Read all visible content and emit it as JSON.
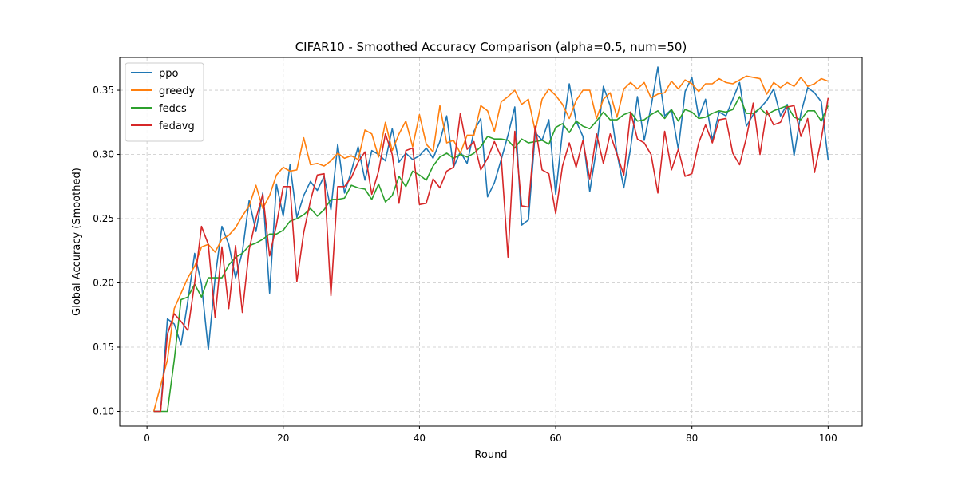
{
  "chart_data": {
    "type": "line",
    "title": "CIFAR10 - Smoothed Accuracy Comparison (alpha=0.5, num=50)",
    "xlabel": "Round",
    "ylabel": "Global Accuracy (Smoothed)",
    "xlim": [
      -4,
      105
    ],
    "ylim": [
      0.0885,
      0.3755
    ],
    "xticks": [
      0,
      20,
      40,
      60,
      80,
      100
    ],
    "yticks": [
      0.1,
      0.15,
      0.2,
      0.25,
      0.3,
      0.35
    ],
    "grid": true,
    "legend_position": "upper-left",
    "colors": {
      "ppo": "#1f77b4",
      "greedy": "#ff7f0e",
      "fedcs": "#2ca02c",
      "fedavg": "#d62728"
    },
    "x": [
      1,
      2,
      3,
      4,
      5,
      6,
      7,
      8,
      9,
      10,
      11,
      12,
      13,
      14,
      15,
      16,
      17,
      18,
      19,
      20,
      21,
      22,
      23,
      24,
      25,
      26,
      27,
      28,
      29,
      30,
      31,
      32,
      33,
      34,
      35,
      36,
      37,
      38,
      39,
      40,
      41,
      42,
      43,
      44,
      45,
      46,
      47,
      48,
      49,
      50,
      51,
      52,
      53,
      54,
      55,
      56,
      57,
      58,
      59,
      60,
      61,
      62,
      63,
      64,
      65,
      66,
      67,
      68,
      69,
      70,
      71,
      72,
      73,
      74,
      75,
      76,
      77,
      78,
      79,
      80,
      81,
      82,
      83,
      84,
      85,
      86,
      87,
      88,
      89,
      90,
      91,
      92,
      93,
      94,
      95,
      96,
      97,
      98,
      99,
      100
    ],
    "series": [
      {
        "name": "ppo",
        "values": [
          0.1,
          0.1,
          0.172,
          0.168,
          0.152,
          0.186,
          0.223,
          0.199,
          0.148,
          0.204,
          0.244,
          0.23,
          0.204,
          0.224,
          0.264,
          0.24,
          0.27,
          0.192,
          0.277,
          0.252,
          0.292,
          0.251,
          0.268,
          0.279,
          0.272,
          0.283,
          0.257,
          0.308,
          0.27,
          0.287,
          0.306,
          0.28,
          0.303,
          0.3,
          0.295,
          0.32,
          0.294,
          0.301,
          0.296,
          0.299,
          0.305,
          0.297,
          0.31,
          0.33,
          0.29,
          0.302,
          0.293,
          0.318,
          0.328,
          0.267,
          0.278,
          0.296,
          0.315,
          0.337,
          0.245,
          0.249,
          0.317,
          0.311,
          0.327,
          0.269,
          0.318,
          0.355,
          0.326,
          0.314,
          0.271,
          0.305,
          0.353,
          0.338,
          0.301,
          0.274,
          0.305,
          0.345,
          0.311,
          0.337,
          0.368,
          0.33,
          0.335,
          0.304,
          0.349,
          0.36,
          0.329,
          0.343,
          0.311,
          0.333,
          0.33,
          0.343,
          0.356,
          0.322,
          0.331,
          0.336,
          0.342,
          0.351,
          0.33,
          0.339,
          0.299,
          0.332,
          0.352,
          0.348,
          0.341,
          0.296
        ]
      },
      {
        "name": "greedy",
        "values": [
          0.1,
          0.12,
          0.14,
          0.18,
          0.192,
          0.204,
          0.213,
          0.228,
          0.23,
          0.224,
          0.234,
          0.237,
          0.243,
          0.252,
          0.26,
          0.276,
          0.258,
          0.268,
          0.284,
          0.29,
          0.287,
          0.288,
          0.313,
          0.292,
          0.293,
          0.291,
          0.295,
          0.301,
          0.297,
          0.299,
          0.296,
          0.319,
          0.316,
          0.298,
          0.325,
          0.303,
          0.316,
          0.326,
          0.306,
          0.331,
          0.308,
          0.302,
          0.338,
          0.309,
          0.311,
          0.301,
          0.315,
          0.315,
          0.338,
          0.334,
          0.318,
          0.341,
          0.345,
          0.35,
          0.339,
          0.343,
          0.318,
          0.343,
          0.351,
          0.346,
          0.339,
          0.328,
          0.342,
          0.35,
          0.35,
          0.328,
          0.343,
          0.348,
          0.329,
          0.351,
          0.356,
          0.351,
          0.356,
          0.344,
          0.347,
          0.348,
          0.357,
          0.351,
          0.358,
          0.355,
          0.349,
          0.355,
          0.355,
          0.359,
          0.356,
          0.355,
          0.358,
          0.361,
          0.36,
          0.359,
          0.347,
          0.356,
          0.352,
          0.356,
          0.353,
          0.36,
          0.353,
          0.355,
          0.359,
          0.357
        ]
      },
      {
        "name": "fedcs",
        "values": [
          0.1,
          0.1,
          0.1,
          0.14,
          0.187,
          0.189,
          0.199,
          0.189,
          0.204,
          0.204,
          0.204,
          0.214,
          0.22,
          0.223,
          0.229,
          0.231,
          0.234,
          0.238,
          0.238,
          0.241,
          0.248,
          0.25,
          0.253,
          0.258,
          0.252,
          0.257,
          0.265,
          0.265,
          0.266,
          0.276,
          0.274,
          0.273,
          0.265,
          0.277,
          0.263,
          0.268,
          0.283,
          0.275,
          0.287,
          0.284,
          0.28,
          0.291,
          0.298,
          0.301,
          0.297,
          0.3,
          0.298,
          0.301,
          0.306,
          0.314,
          0.312,
          0.312,
          0.311,
          0.305,
          0.312,
          0.309,
          0.31,
          0.311,
          0.308,
          0.321,
          0.324,
          0.317,
          0.326,
          0.322,
          0.32,
          0.326,
          0.333,
          0.327,
          0.327,
          0.331,
          0.333,
          0.326,
          0.327,
          0.331,
          0.334,
          0.328,
          0.335,
          0.326,
          0.335,
          0.333,
          0.328,
          0.329,
          0.332,
          0.334,
          0.333,
          0.335,
          0.345,
          0.332,
          0.332,
          0.336,
          0.331,
          0.334,
          0.336,
          0.338,
          0.329,
          0.327,
          0.334,
          0.334,
          0.326,
          0.338
        ]
      },
      {
        "name": "fedavg",
        "values": [
          0.1,
          0.1,
          0.16,
          0.176,
          0.17,
          0.163,
          0.2,
          0.244,
          0.23,
          0.173,
          0.228,
          0.18,
          0.229,
          0.177,
          0.226,
          0.25,
          0.269,
          0.221,
          0.245,
          0.275,
          0.275,
          0.201,
          0.239,
          0.264,
          0.284,
          0.285,
          0.19,
          0.275,
          0.275,
          0.282,
          0.294,
          0.302,
          0.269,
          0.287,
          0.316,
          0.3,
          0.262,
          0.303,
          0.305,
          0.261,
          0.262,
          0.281,
          0.274,
          0.287,
          0.29,
          0.332,
          0.304,
          0.31,
          0.288,
          0.297,
          0.31,
          0.298,
          0.22,
          0.318,
          0.26,
          0.259,
          0.322,
          0.288,
          0.285,
          0.254,
          0.291,
          0.309,
          0.29,
          0.311,
          0.281,
          0.316,
          0.293,
          0.316,
          0.3,
          0.284,
          0.333,
          0.312,
          0.309,
          0.3,
          0.27,
          0.318,
          0.288,
          0.304,
          0.283,
          0.285,
          0.309,
          0.323,
          0.309,
          0.327,
          0.328,
          0.301,
          0.292,
          0.313,
          0.34,
          0.3,
          0.334,
          0.323,
          0.325,
          0.337,
          0.338,
          0.314,
          0.328,
          0.286,
          0.312,
          0.344
        ]
      }
    ]
  }
}
